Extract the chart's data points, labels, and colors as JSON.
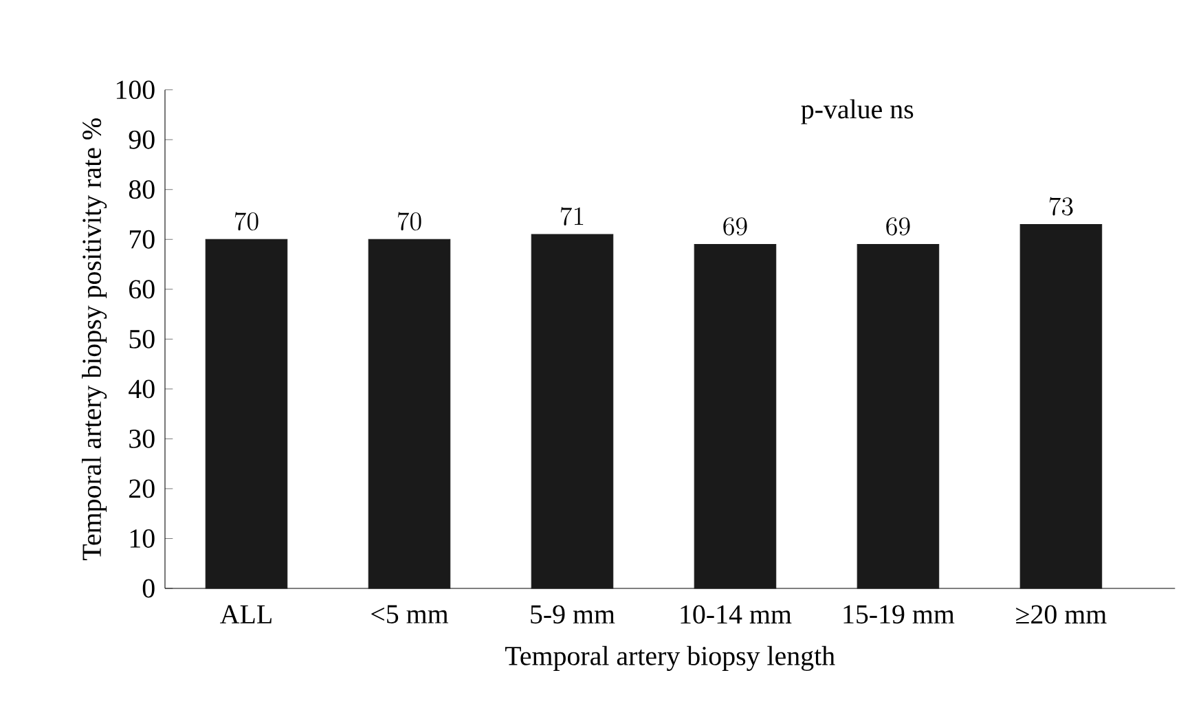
{
  "chart_data": {
    "type": "bar",
    "xlabel": "Temporal artery biopsy length",
    "ylabel": "Temporal artery biopsy positivity rate %",
    "categories": [
      "ALL",
      "<5 mm",
      "5-9 mm",
      "10-14 mm",
      "15-19 mm",
      "≥20 mm"
    ],
    "values": [
      70,
      70,
      71,
      69,
      69,
      73
    ],
    "color": "#1a1a1a",
    "ylim": [
      0,
      100
    ],
    "yticks": [
      0,
      10,
      20,
      30,
      40,
      50,
      60,
      70,
      80,
      90,
      100
    ],
    "data_labels": true,
    "grid": false,
    "annotations": [
      "p-value ns"
    ]
  }
}
